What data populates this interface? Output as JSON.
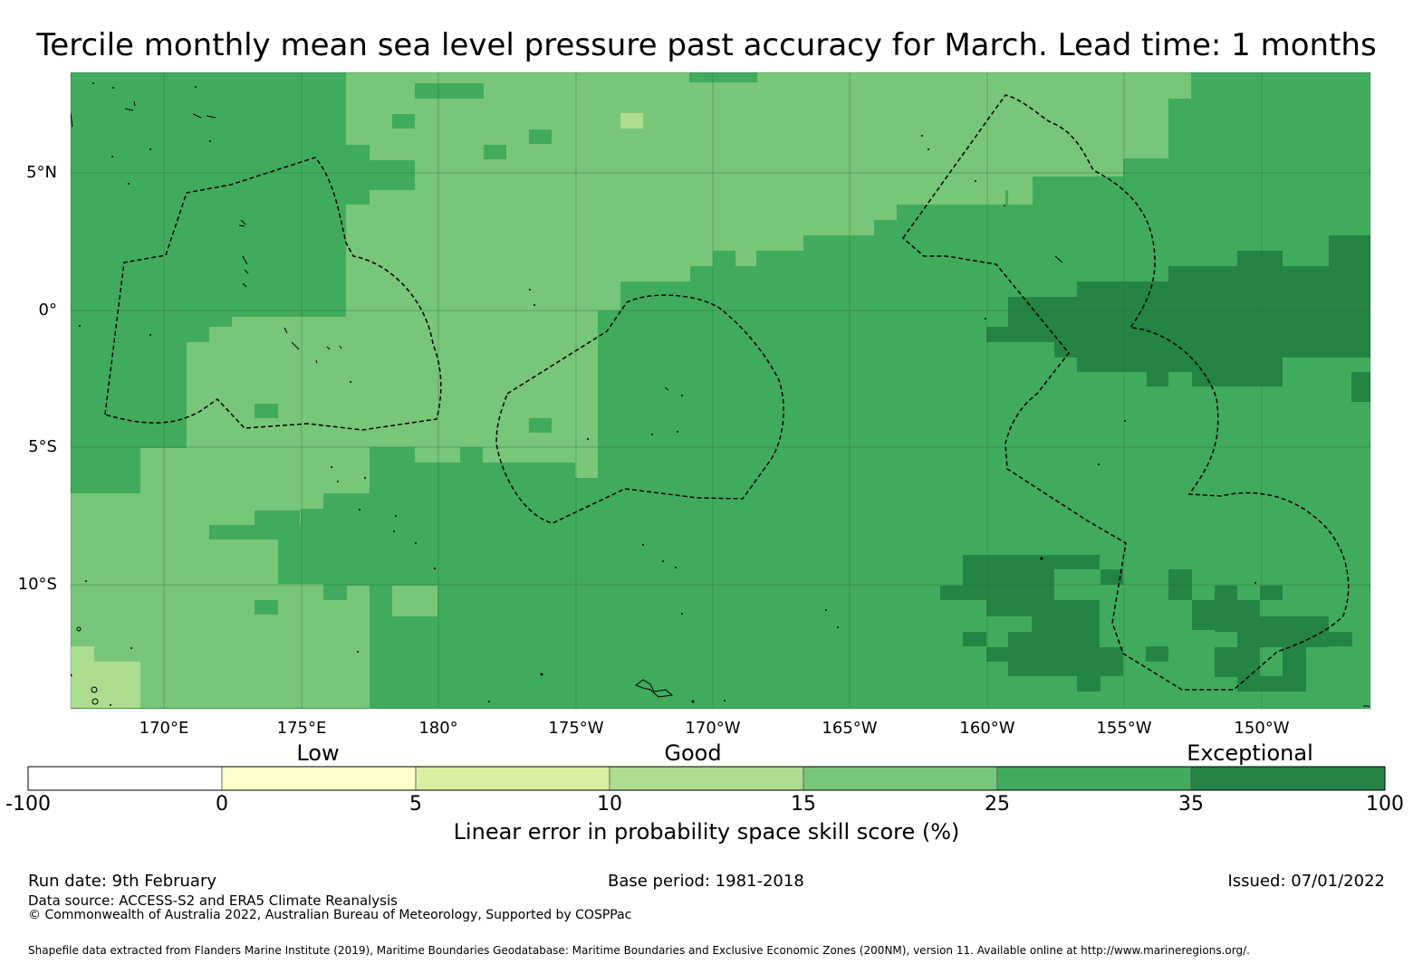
{
  "title": "Tercile monthly mean sea level pressure past accuracy for March. Lead time: 1 months",
  "lat_labels": [
    "5°N",
    "0°",
    "5°S",
    "10°S"
  ],
  "lon_labels": [
    "170°E",
    "175°E",
    "180°",
    "175°W",
    "170°W",
    "165°W",
    "160°W",
    "155°W",
    "150°W"
  ],
  "category_labels": [
    "Low",
    "Good",
    "Exceptional"
  ],
  "colorbar": {
    "ticks": [
      "-100",
      "0",
      "5",
      "10",
      "15",
      "25",
      "35",
      "100"
    ],
    "colors": [
      "#ffffff",
      "#ffffcc",
      "#d9f0a3",
      "#addd8e",
      "#78c679",
      "#41ab5d",
      "#238443"
    ],
    "title": "Linear error in probability space skill score (%)"
  },
  "map_colors": {
    "c15_25": "#78c679",
    "c25_35": "#41ab5d",
    "c35_100": "#238443",
    "c10_15": "#addd8e",
    "grid": "#2f6b3a",
    "boundary": "#000000"
  },
  "footer": {
    "run_date": "Run date: 9th February",
    "base_period": "Base period: 1981-2018",
    "issued": "Issued: 07/01/2022",
    "data_source": "Data source: ACCESS-S2 and ERA5 Climate Reanalysis",
    "copyright": "© Commonwealth of Australia 2022, Australian Bureau of Meteorology, Supported by COSPPac",
    "shapefile": "Shapefile data extracted from Flanders Marine Institute (2019), Maritime Boundaries Geodatabase: Maritime Boundaries and Exclusive Economic Zones (200NM), version 11. Available online at http://www.marineregions.org/."
  }
}
